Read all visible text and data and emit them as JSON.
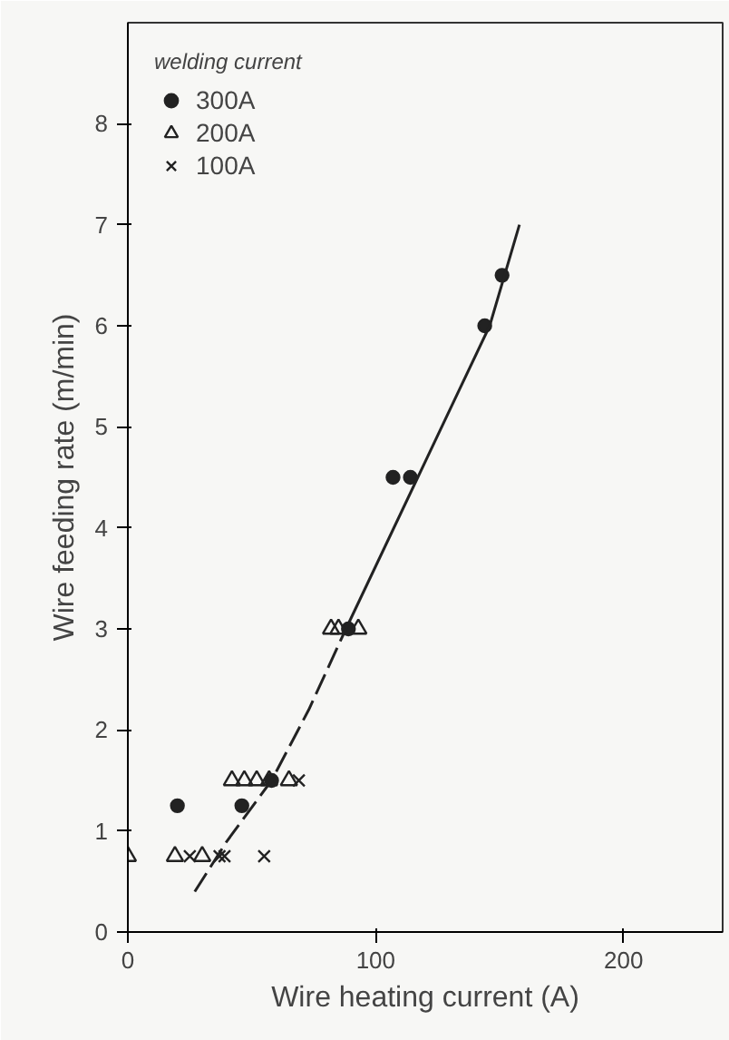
{
  "chart_data": {
    "type": "scatter",
    "xlabel": "Wire heating current (A)",
    "ylabel": "Wire feeding rate (m/min)",
    "legend_title": "welding current",
    "legend": "top left",
    "grid": false,
    "xlim": [
      0,
      240
    ],
    "ylim": [
      0,
      9
    ],
    "xticks": [
      0,
      100,
      200
    ],
    "yticks": [
      0,
      1,
      2,
      3,
      4,
      5,
      6,
      7,
      8
    ],
    "series": [
      {
        "name": "300A",
        "color": "#222222",
        "marker": "circle",
        "x": [
          20,
          46,
          58,
          89,
          107,
          114,
          144,
          151
        ],
        "values": [
          1.25,
          1.25,
          1.5,
          3.0,
          4.5,
          4.5,
          6.0,
          6.5
        ]
      },
      {
        "name": "200A",
        "color": "#222222",
        "marker": "triangle",
        "x": [
          0,
          19,
          30,
          42,
          47,
          52,
          57,
          65,
          82,
          85,
          93
        ],
        "values": [
          0.75,
          0.75,
          0.75,
          1.5,
          1.5,
          1.5,
          1.5,
          1.5,
          3.0,
          3.0,
          3.0
        ]
      },
      {
        "name": "100A",
        "color": "#222222",
        "marker": "cross",
        "x": [
          25,
          37,
          39,
          55,
          69
        ],
        "values": [
          0.75,
          0.75,
          0.75,
          0.75,
          1.5
        ]
      },
      {
        "type": "line",
        "color": "#222222",
        "line_style": "dashed",
        "x": [
          27,
          40,
          58,
          73,
          88
        ],
        "values": [
          0.4,
          0.9,
          1.5,
          2.2,
          3.0
        ]
      },
      {
        "type": "line",
        "color": "#222222",
        "line_style": "solid",
        "x": [
          88,
          117,
          146,
          158
        ],
        "values": [
          3.0,
          4.5,
          6.0,
          7.0
        ]
      }
    ]
  }
}
